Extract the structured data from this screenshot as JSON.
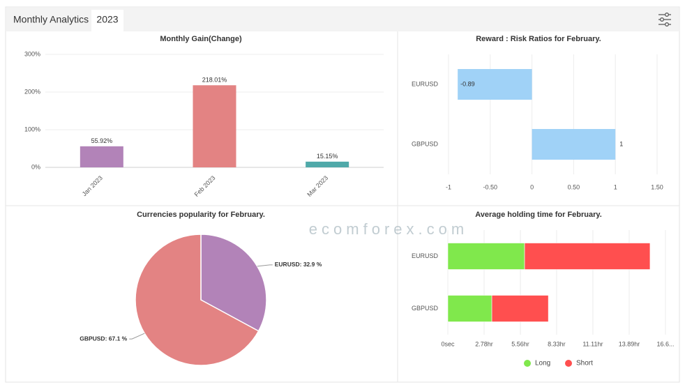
{
  "header": {
    "title": "Monthly Analytics",
    "tab": "2023"
  },
  "watermark": "ecomforex.com",
  "chart_data": [
    {
      "type": "bar",
      "title": "Monthly Gain(Change)",
      "categories": [
        "Jan 2023",
        "Feb 2023",
        "Mar 2023"
      ],
      "values": [
        55.92,
        218.01,
        15.15
      ],
      "value_labels": [
        "55.92%",
        "218.01%",
        "15.15%"
      ],
      "colors": [
        "#b283b8",
        "#e38383",
        "#4fa9a9"
      ],
      "ylim": [
        0,
        300
      ],
      "yticks": [
        {
          "value": 0,
          "label": "0%"
        },
        {
          "value": 100,
          "label": "100%"
        },
        {
          "value": 200,
          "label": "200%"
        },
        {
          "value": 300,
          "label": "300%"
        }
      ],
      "grid": true
    },
    {
      "type": "hbar",
      "title": "Reward : Risk Ratios for February.",
      "categories": [
        "EURUSD",
        "GBPUSD"
      ],
      "values": [
        -0.89,
        1
      ],
      "color": "#a0d2f7",
      "xlim": [
        -1,
        1.5
      ],
      "xticks": [
        -1,
        {
          "value": -0.5,
          "label": "-0.50"
        },
        0,
        {
          "value": 0.5,
          "label": "0.50"
        },
        1,
        {
          "value": 1.5,
          "label": "1.50"
        }
      ],
      "grid": true
    },
    {
      "type": "pie",
      "title": "Currencies popularity for February.",
      "categories": [
        "EURUSD",
        "GBPUSD"
      ],
      "values": [
        32.9,
        67.1
      ],
      "value_labels": [
        "EURUSD: 32.9 %",
        "GBPUSD: 67.1 %"
      ],
      "colors": [
        "#b283b8",
        "#e38383"
      ]
    },
    {
      "type": "stackedbar",
      "title": "Average holding time for February.",
      "categories": [
        "EURUSD",
        "GBPUSD"
      ],
      "series": [
        {
          "name": "Long",
          "color": "#80e84c",
          "values": [
            5.88,
            3.37
          ]
        },
        {
          "name": "Short",
          "color": "#ff4f4f",
          "values": [
            9.61,
            4.33
          ]
        }
      ],
      "xlim": [
        0,
        16.67
      ],
      "xticks": [
        {
          "value": 0,
          "label": "0sec"
        },
        {
          "value": 2.78,
          "label": "2.78hr"
        },
        {
          "value": 5.56,
          "label": "5.56hr"
        },
        {
          "value": 8.33,
          "label": "8.33hr"
        },
        {
          "value": 11.11,
          "label": "11.11hr"
        },
        {
          "value": 13.89,
          "label": "13.89hr"
        },
        {
          "value": 16.67,
          "label": "16.6..."
        }
      ],
      "grid": true,
      "legend": "bottom"
    }
  ]
}
